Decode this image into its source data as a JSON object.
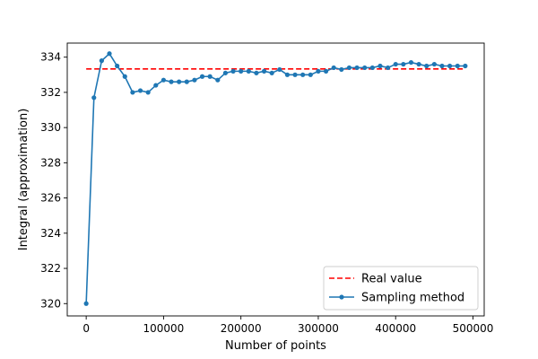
{
  "chart_data": {
    "type": "line",
    "xlabel": "Number of points",
    "ylabel": "Integral (approximation)",
    "xlim": [
      -24500,
      514500
    ],
    "ylim": [
      319.3,
      334.8
    ],
    "xticks": [
      0,
      100000,
      200000,
      300000,
      400000,
      500000
    ],
    "xtick_labels": [
      "0",
      "100000",
      "200000",
      "300000",
      "400000",
      "500000"
    ],
    "yticks": [
      320,
      322,
      324,
      326,
      328,
      330,
      332,
      334
    ],
    "ytick_labels": [
      "320",
      "322",
      "324",
      "326",
      "328",
      "330",
      "332",
      "334"
    ],
    "grid": false,
    "legend_position": "lower-right",
    "series": [
      {
        "name": "Real value",
        "style": "dashed",
        "color": "#ff0000",
        "x": [
          0,
          490000
        ],
        "y": [
          333.33,
          333.33
        ]
      },
      {
        "name": "Sampling method",
        "style": "line-dot",
        "color": "#1f77b4",
        "x": [
          0,
          10000,
          20000,
          30000,
          40000,
          50000,
          60000,
          70000,
          80000,
          90000,
          100000,
          110000,
          120000,
          130000,
          140000,
          150000,
          160000,
          170000,
          180000,
          190000,
          200000,
          210000,
          220000,
          230000,
          240000,
          250000,
          260000,
          270000,
          280000,
          290000,
          300000,
          310000,
          320000,
          330000,
          340000,
          350000,
          360000,
          370000,
          380000,
          390000,
          400000,
          410000,
          420000,
          430000,
          440000,
          450000,
          460000,
          470000,
          480000,
          490000
        ],
        "y": [
          320.0,
          331.7,
          333.8,
          334.2,
          333.5,
          332.9,
          332.0,
          332.1,
          332.0,
          332.4,
          332.7,
          332.6,
          332.6,
          332.6,
          332.7,
          332.9,
          332.9,
          332.7,
          333.1,
          333.2,
          333.2,
          333.2,
          333.1,
          333.2,
          333.1,
          333.3,
          333.0,
          333.0,
          333.0,
          333.0,
          333.2,
          333.2,
          333.4,
          333.3,
          333.4,
          333.4,
          333.4,
          333.4,
          333.5,
          333.4,
          333.6,
          333.6,
          333.7,
          333.6,
          333.5,
          333.6,
          333.5,
          333.5,
          333.5,
          333.5
        ]
      }
    ]
  }
}
